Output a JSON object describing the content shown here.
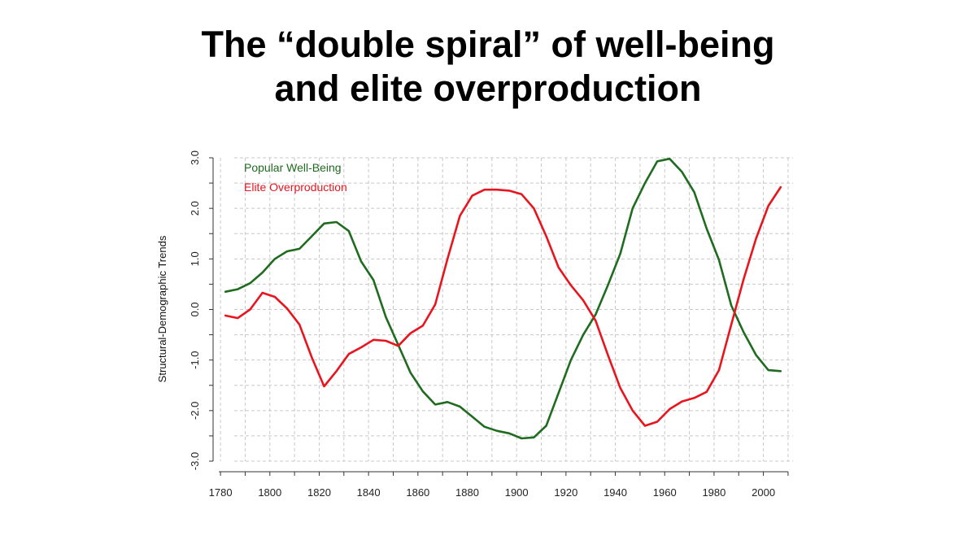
{
  "title": {
    "line1": "The “double spiral” of well-being",
    "line2": "and elite overproduction"
  },
  "chart_data": {
    "type": "line",
    "title": "The “double spiral” of well-being and elite overproduction",
    "xlabel": "",
    "ylabel": "Structural-Demographic Trends",
    "xlim": [
      1777,
      2012
    ],
    "ylim": [
      -3.0,
      3.0
    ],
    "xticks": [
      1780,
      1800,
      1820,
      1840,
      1860,
      1880,
      1900,
      1920,
      1940,
      1960,
      1980,
      2000
    ],
    "xtick_labels": [
      "1780",
      "1800",
      "1820",
      "1840",
      "1860",
      "1880",
      "1900",
      "1920",
      "1940",
      "1960",
      "1980",
      "2000"
    ],
    "yticks": [
      -3.0,
      -2.0,
      -1.0,
      0.0,
      1.0,
      2.0,
      3.0
    ],
    "ytick_labels": [
      "-3.0",
      "-2.0",
      "-1.0",
      "0.0",
      "1.0",
      "2.0",
      "3.0"
    ],
    "grid": true,
    "legend_position": "top-left",
    "series": [
      {
        "name": "Popular Well-Being",
        "color": "#1f6b1f",
        "x": [
          1782,
          1787,
          1792,
          1797,
          1802,
          1807,
          1812,
          1817,
          1822,
          1827,
          1832,
          1837,
          1842,
          1847,
          1852,
          1857,
          1862,
          1867,
          1872,
          1877,
          1882,
          1887,
          1892,
          1897,
          1902,
          1907,
          1912,
          1917,
          1922,
          1927,
          1932,
          1937,
          1942,
          1947,
          1952,
          1957,
          1962,
          1967,
          1972,
          1977,
          1982,
          1987,
          1992,
          1997,
          2002,
          2007
        ],
        "values": [
          0.35,
          0.4,
          0.52,
          0.73,
          1.0,
          1.15,
          1.2,
          1.45,
          1.7,
          1.73,
          1.55,
          0.95,
          0.58,
          -0.15,
          -0.7,
          -1.25,
          -1.62,
          -1.88,
          -1.83,
          -1.92,
          -2.12,
          -2.32,
          -2.4,
          -2.45,
          -2.55,
          -2.53,
          -2.3,
          -1.65,
          -1.0,
          -0.5,
          -0.1,
          0.48,
          1.1,
          2.0,
          2.5,
          2.93,
          2.98,
          2.72,
          2.32,
          1.6,
          0.98,
          0.08,
          -0.45,
          -0.9,
          -1.2,
          -1.22
        ]
      },
      {
        "name": "Elite Overproduction",
        "color": "#e8151f",
        "x": [
          1782,
          1787,
          1792,
          1797,
          1802,
          1807,
          1812,
          1817,
          1822,
          1827,
          1832,
          1837,
          1842,
          1847,
          1852,
          1857,
          1862,
          1867,
          1872,
          1877,
          1882,
          1887,
          1892,
          1897,
          1902,
          1907,
          1912,
          1917,
          1922,
          1927,
          1932,
          1937,
          1942,
          1947,
          1952,
          1957,
          1962,
          1967,
          1972,
          1977,
          1982,
          1987,
          1992,
          1997,
          2002,
          2007
        ],
        "values": [
          -0.12,
          -0.17,
          0.0,
          0.33,
          0.25,
          0.02,
          -0.3,
          -0.95,
          -1.52,
          -1.22,
          -0.88,
          -0.75,
          -0.6,
          -0.62,
          -0.72,
          -0.47,
          -0.32,
          0.1,
          1.0,
          1.85,
          2.25,
          2.37,
          2.37,
          2.35,
          2.28,
          2.0,
          1.45,
          0.83,
          0.48,
          0.18,
          -0.22,
          -0.9,
          -1.55,
          -2.0,
          -2.3,
          -2.22,
          -1.97,
          -1.82,
          -1.75,
          -1.63,
          -1.2,
          -0.3,
          0.6,
          1.4,
          2.05,
          2.42
        ]
      }
    ]
  }
}
